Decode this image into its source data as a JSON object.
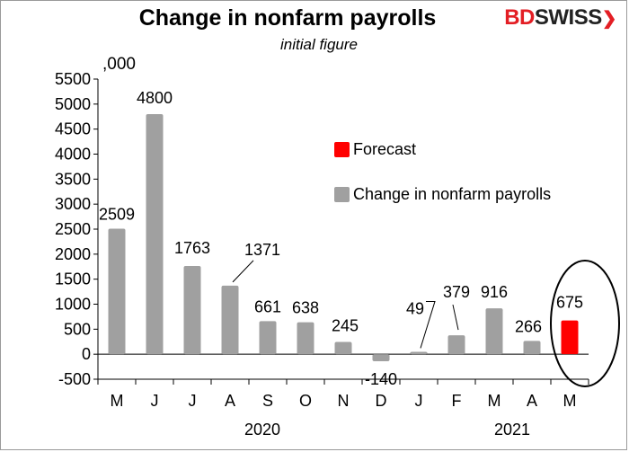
{
  "header": {
    "title": "Change in nonfarm payrolls",
    "subtitle": "initial figure",
    "unit": ",000",
    "brand_red": "BD",
    "brand_dark": "SWISS",
    "brand_mark": "❯"
  },
  "legend": {
    "forecast": "Forecast",
    "actual": "Change in nonfarm payrolls"
  },
  "colors": {
    "actual": "#a0a0a0",
    "forecast": "#ff0000",
    "brand": "#e31e24"
  },
  "chart_data": {
    "type": "bar",
    "categories": [
      "M",
      "J",
      "J",
      "A",
      "S",
      "O",
      "N",
      "D",
      "J",
      "F",
      "M",
      "A",
      "M"
    ],
    "year_labels": [
      {
        "label": "2020",
        "from": 0,
        "to": 7
      },
      {
        "label": "2021",
        "from": 8,
        "to": 12
      }
    ],
    "series": [
      {
        "name": "Change in nonfarm payrolls",
        "values": [
          2509,
          4800,
          1763,
          1371,
          661,
          638,
          245,
          -140,
          49,
          379,
          916,
          266,
          null
        ]
      },
      {
        "name": "Forecast",
        "values": [
          null,
          null,
          null,
          null,
          null,
          null,
          null,
          null,
          null,
          null,
          null,
          null,
          675
        ]
      }
    ],
    "data_labels": [
      "2509",
      "4800",
      "1763",
      "1371",
      "661",
      "638",
      "245",
      "-140",
      "49",
      "379",
      "916",
      "266",
      "675"
    ],
    "ylim": [
      -500,
      5500
    ],
    "yticks": [
      -500,
      0,
      500,
      1000,
      1500,
      2000,
      2500,
      3000,
      3500,
      4000,
      4500,
      5000,
      5500
    ],
    "grid": false,
    "legend_position": "right",
    "highlight": "last bar circled"
  }
}
